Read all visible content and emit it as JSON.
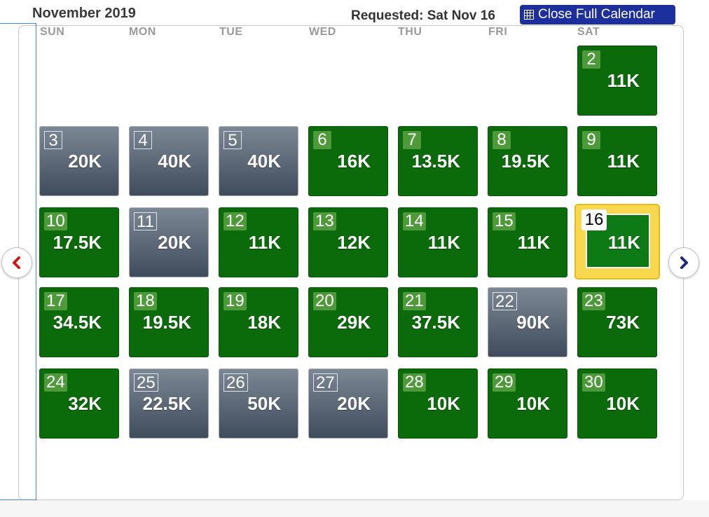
{
  "header": {
    "month": "November 2019",
    "requested": "Requested: Sat Nov 16",
    "close_label": "Close Full Calendar"
  },
  "weekdays": [
    "SUN",
    "MON",
    "TUE",
    "WED",
    "THU",
    "FRI",
    "SAT"
  ],
  "nav": {
    "prev_icon": "chevron-left-icon",
    "next_icon": "chevron-right-icon"
  },
  "colors": {
    "available": "#0b6b0b",
    "unavailable": "#4a5666",
    "selected_border": "#f7d84e",
    "accent": "#1d2f9c"
  },
  "days": [
    {
      "day": "2",
      "price": "11K",
      "status": "available"
    },
    {
      "day": "3",
      "price": "20K",
      "status": "unavailable"
    },
    {
      "day": "4",
      "price": "40K",
      "status": "unavailable"
    },
    {
      "day": "5",
      "price": "40K",
      "status": "unavailable"
    },
    {
      "day": "6",
      "price": "16K",
      "status": "available"
    },
    {
      "day": "7",
      "price": "13.5K",
      "status": "available"
    },
    {
      "day": "8",
      "price": "19.5K",
      "status": "available"
    },
    {
      "day": "9",
      "price": "11K",
      "status": "available"
    },
    {
      "day": "10",
      "price": "17.5K",
      "status": "available"
    },
    {
      "day": "11",
      "price": "20K",
      "status": "unavailable"
    },
    {
      "day": "12",
      "price": "11K",
      "status": "available"
    },
    {
      "day": "13",
      "price": "12K",
      "status": "available"
    },
    {
      "day": "14",
      "price": "11K",
      "status": "available"
    },
    {
      "day": "15",
      "price": "11K",
      "status": "available"
    },
    {
      "day": "16",
      "price": "11K",
      "status": "selected"
    },
    {
      "day": "17",
      "price": "34.5K",
      "status": "available"
    },
    {
      "day": "18",
      "price": "19.5K",
      "status": "available"
    },
    {
      "day": "19",
      "price": "18K",
      "status": "available"
    },
    {
      "day": "20",
      "price": "29K",
      "status": "available"
    },
    {
      "day": "21",
      "price": "37.5K",
      "status": "available"
    },
    {
      "day": "22",
      "price": "90K",
      "status": "unavailable"
    },
    {
      "day": "23",
      "price": "73K",
      "status": "available"
    },
    {
      "day": "24",
      "price": "32K",
      "status": "available"
    },
    {
      "day": "25",
      "price": "22.5K",
      "status": "unavailable"
    },
    {
      "day": "26",
      "price": "50K",
      "status": "unavailable"
    },
    {
      "day": "27",
      "price": "20K",
      "status": "unavailable"
    },
    {
      "day": "28",
      "price": "10K",
      "status": "available"
    },
    {
      "day": "29",
      "price": "10K",
      "status": "available"
    },
    {
      "day": "30",
      "price": "10K",
      "status": "available"
    }
  ]
}
